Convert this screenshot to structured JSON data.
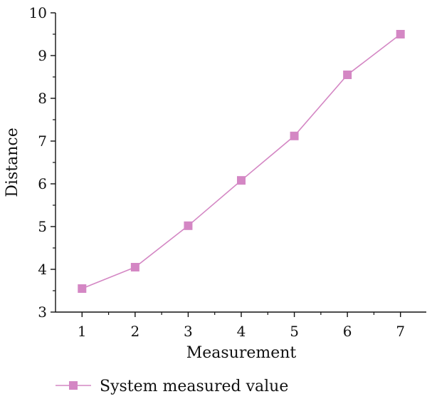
{
  "chart_data": {
    "type": "line",
    "title": "",
    "xlabel": "Measurement",
    "ylabel": "Distance",
    "x": [
      1,
      2,
      3,
      4,
      5,
      6,
      7
    ],
    "xlim": [
      0.5,
      7.5
    ],
    "ylim": [
      3,
      10
    ],
    "xticks": [
      1,
      2,
      3,
      4,
      5,
      6,
      7
    ],
    "yticks": [
      3,
      4,
      5,
      6,
      7,
      8,
      9,
      10
    ],
    "grid": false,
    "legend_position": "bottom-left",
    "series": [
      {
        "name": "System measured value",
        "values": [
          3.55,
          4.05,
          5.02,
          6.08,
          7.12,
          8.55,
          9.5
        ],
        "color": "#d487c4",
        "marker": "square"
      }
    ]
  }
}
